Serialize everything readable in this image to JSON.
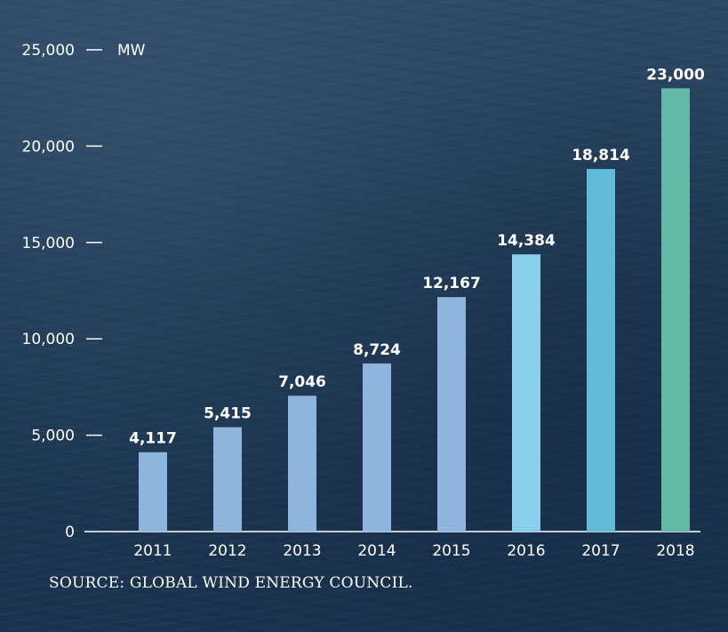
{
  "chart_data": {
    "type": "bar",
    "categories": [
      "2011",
      "2012",
      "2013",
      "2014",
      "2015",
      "2016",
      "2017",
      "2018"
    ],
    "values": [
      4117,
      5415,
      7046,
      8724,
      12167,
      14384,
      18814,
      23000
    ],
    "value_labels": [
      "4,117",
      "5,415",
      "7,046",
      "8,724",
      "12,167",
      "14,384",
      "18,814",
      "23,000"
    ],
    "bar_colors": [
      "#8fb5df",
      "#8fb5df",
      "#8fb5df",
      "#8fb5df",
      "#8fb5df",
      "#86d0ee",
      "#5fbbd6",
      "#63bba7"
    ],
    "ylabel": "MW",
    "ylim": [
      0,
      25000
    ],
    "yticks": [
      0,
      5000,
      10000,
      15000,
      20000,
      25000
    ],
    "ytick_labels": [
      "0",
      "5,000",
      "10,000",
      "15,000",
      "20,000",
      "25,000"
    ],
    "grid": false
  },
  "source": "SOURCE: GLOBAL WIND ENERGY COUNCIL."
}
